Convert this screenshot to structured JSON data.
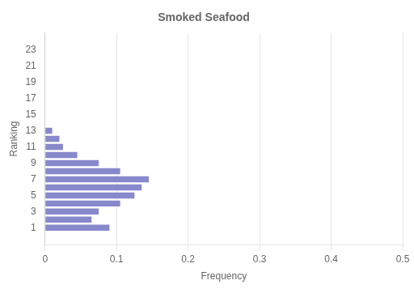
{
  "chart_data": {
    "type": "bar",
    "orientation": "horizontal",
    "title": "Smoked Seafood",
    "xlabel": "Frequency",
    "ylabel": "Ranking",
    "categories": [
      1,
      2,
      3,
      4,
      5,
      6,
      7,
      8,
      9,
      10,
      11,
      12,
      13,
      14,
      15,
      16,
      17,
      18,
      19,
      20,
      21,
      22,
      23
    ],
    "values": [
      0.09,
      0.065,
      0.075,
      0.105,
      0.125,
      0.135,
      0.145,
      0.105,
      0.075,
      0.045,
      0.025,
      0.02,
      0.01,
      0.0,
      0.0,
      0.0,
      0.0,
      0.0,
      0.0,
      0.0,
      0.0,
      0.0,
      0.0
    ],
    "color": "#8888cc",
    "xlim": [
      0,
      0.5
    ],
    "xticks": [
      0,
      0.1,
      0.2,
      0.3,
      0.4,
      0.5
    ],
    "ylim": [
      0,
      24
    ],
    "yticks": [
      1,
      3,
      5,
      7,
      9,
      11,
      13,
      15,
      17,
      19,
      21,
      23
    ],
    "grid": true
  }
}
